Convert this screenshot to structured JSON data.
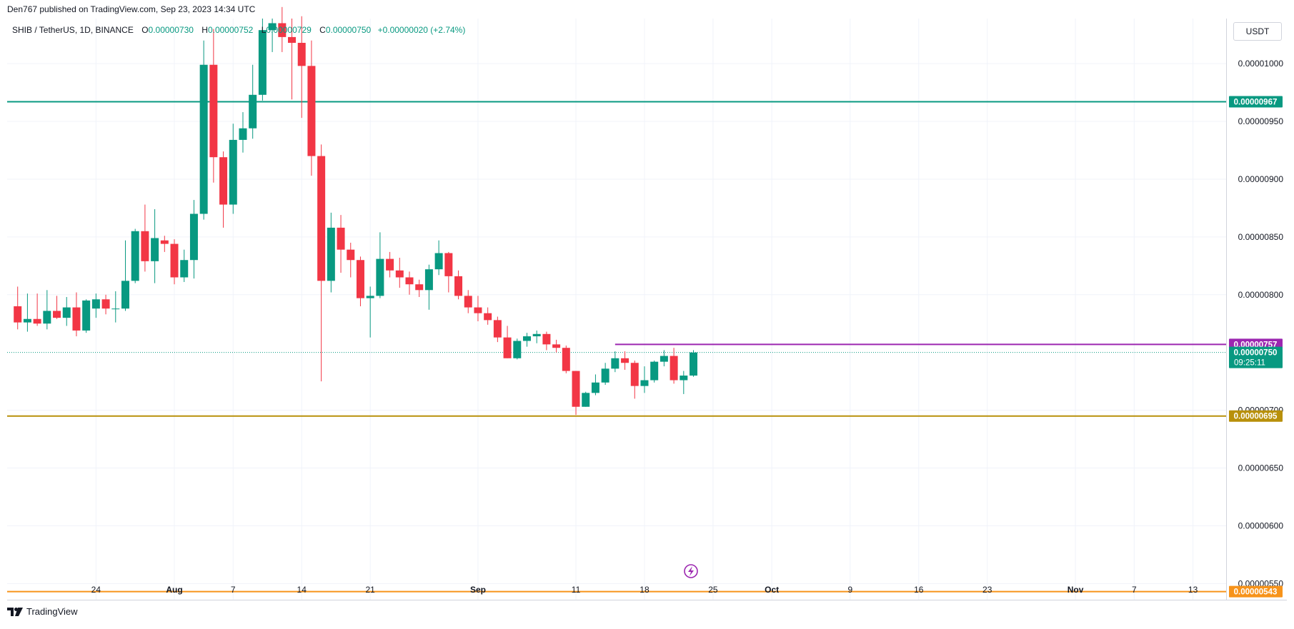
{
  "header": {
    "publisher": "Den767 published on TradingView.com, Sep 23, 2023 14:34 UTC"
  },
  "legend": {
    "symbol": "SHIB / TetherUS, 1D, BINANCE",
    "open_key": "O",
    "open": "0.00000730",
    "high_key": "H",
    "high": "0.00000752",
    "low_key": "L",
    "low": "0.00000729",
    "close_key": "C",
    "close": "0.00000750",
    "change": "+0.00000020 (+2.74%)"
  },
  "currency": "USDT",
  "brand": "TradingView",
  "colors": {
    "up": "#089981",
    "down": "#f23645",
    "grid": "#f0f3fa",
    "teal_line": "#089981",
    "purple_line": "#9c27b0",
    "gold_line": "#b8900a",
    "orange_line": "#f7931a"
  },
  "chart_data": {
    "type": "candlestick",
    "ylim": [
      5.36e-06,
      1.039e-05
    ],
    "y_ticks": [
      "0.00001000",
      "0.00000950",
      "0.00000900",
      "0.00000850",
      "0.00000800",
      "0.00000700",
      "0.00000650",
      "0.00000600",
      "0.00000550"
    ],
    "y_tick_values": [
      1e-05,
      9.5e-06,
      9e-06,
      8.5e-06,
      8e-06,
      7e-06,
      6.5e-06,
      6e-06,
      5.5e-06
    ],
    "x_range": [
      "2023-07-15",
      "2023-11-15"
    ],
    "x_ticks": [
      {
        "label": "24",
        "date": "2023-07-24",
        "bold": false
      },
      {
        "label": "Aug",
        "date": "2023-08-01",
        "bold": true
      },
      {
        "label": "7",
        "date": "2023-08-07",
        "bold": false
      },
      {
        "label": "14",
        "date": "2023-08-14",
        "bold": false
      },
      {
        "label": "21",
        "date": "2023-08-21",
        "bold": false
      },
      {
        "label": "Sep",
        "date": "2023-09-01",
        "bold": true
      },
      {
        "label": "11",
        "date": "2023-09-11",
        "bold": false
      },
      {
        "label": "18",
        "date": "2023-09-18",
        "bold": false
      },
      {
        "label": "25",
        "date": "2023-09-25",
        "bold": false
      },
      {
        "label": "Oct",
        "date": "2023-10-01",
        "bold": true
      },
      {
        "label": "9",
        "date": "2023-10-09",
        "bold": false
      },
      {
        "label": "16",
        "date": "2023-10-16",
        "bold": false
      },
      {
        "label": "23",
        "date": "2023-10-23",
        "bold": false
      },
      {
        "label": "Nov",
        "date": "2023-11-01",
        "bold": true
      },
      {
        "label": "7",
        "date": "2023-11-07",
        "bold": false
      },
      {
        "label": "13",
        "date": "2023-11-13",
        "bold": false
      }
    ],
    "candles": [
      {
        "date": "2023-07-16",
        "o": 7.9,
        "h": 8.07,
        "l": 7.7,
        "c": 7.76
      },
      {
        "date": "2023-07-17",
        "o": 7.76,
        "h": 8.01,
        "l": 7.68,
        "c": 7.79
      },
      {
        "date": "2023-07-18",
        "o": 7.79,
        "h": 8.01,
        "l": 7.73,
        "c": 7.75
      },
      {
        "date": "2023-07-19",
        "o": 7.75,
        "h": 8.04,
        "l": 7.7,
        "c": 7.86
      },
      {
        "date": "2023-07-20",
        "o": 7.86,
        "h": 7.99,
        "l": 7.79,
        "c": 7.8
      },
      {
        "date": "2023-07-21",
        "o": 7.8,
        "h": 7.98,
        "l": 7.73,
        "c": 7.89
      },
      {
        "date": "2023-07-22",
        "o": 7.89,
        "h": 8.02,
        "l": 7.64,
        "c": 7.69
      },
      {
        "date": "2023-07-23",
        "o": 7.69,
        "h": 7.96,
        "l": 7.67,
        "c": 7.95
      },
      {
        "date": "2023-07-24",
        "o": 7.88,
        "h": 8.01,
        "l": 7.8,
        "c": 7.96
      },
      {
        "date": "2023-07-25",
        "o": 7.96,
        "h": 8.0,
        "l": 7.83,
        "c": 7.88
      },
      {
        "date": "2023-07-26",
        "o": 7.88,
        "h": 8.03,
        "l": 7.76,
        "c": 7.88
      },
      {
        "date": "2023-07-27",
        "o": 7.88,
        "h": 8.47,
        "l": 7.86,
        "c": 8.12
      },
      {
        "date": "2023-07-28",
        "o": 8.12,
        "h": 8.57,
        "l": 8.1,
        "c": 8.55
      },
      {
        "date": "2023-07-29",
        "o": 8.55,
        "h": 8.78,
        "l": 8.2,
        "c": 8.29
      },
      {
        "date": "2023-07-30",
        "o": 8.29,
        "h": 8.74,
        "l": 8.1,
        "c": 8.49
      },
      {
        "date": "2023-07-31",
        "o": 8.47,
        "h": 8.51,
        "l": 8.37,
        "c": 8.44
      },
      {
        "date": "2023-08-01",
        "o": 8.44,
        "h": 8.48,
        "l": 8.09,
        "c": 8.15
      },
      {
        "date": "2023-08-02",
        "o": 8.15,
        "h": 8.39,
        "l": 8.11,
        "c": 8.3
      },
      {
        "date": "2023-08-03",
        "o": 8.3,
        "h": 8.82,
        "l": 8.14,
        "c": 8.7
      },
      {
        "date": "2023-08-04",
        "o": 8.7,
        "h": 10.2,
        "l": 8.65,
        "c": 9.99
      },
      {
        "date": "2023-08-05",
        "o": 9.99,
        "h": 10.3,
        "l": 8.97,
        "c": 9.19
      },
      {
        "date": "2023-08-06",
        "o": 9.19,
        "h": 9.24,
        "l": 8.58,
        "c": 8.78
      },
      {
        "date": "2023-08-07",
        "o": 8.78,
        "h": 9.48,
        "l": 8.7,
        "c": 9.34
      },
      {
        "date": "2023-08-08",
        "o": 9.34,
        "h": 9.58,
        "l": 9.23,
        "c": 9.44
      },
      {
        "date": "2023-08-09",
        "o": 9.44,
        "h": 9.99,
        "l": 9.35,
        "c": 9.73
      },
      {
        "date": "2023-08-10",
        "o": 9.73,
        "h": 10.39,
        "l": 9.68,
        "c": 10.29
      },
      {
        "date": "2023-08-11",
        "o": 10.29,
        "h": 10.39,
        "l": 10.1,
        "c": 10.35
      },
      {
        "date": "2023-08-12",
        "o": 10.35,
        "h": 10.49,
        "l": 10.1,
        "c": 10.23
      },
      {
        "date": "2023-08-13",
        "o": 10.23,
        "h": 10.39,
        "l": 9.69,
        "c": 10.18
      },
      {
        "date": "2023-08-14",
        "o": 10.18,
        "h": 10.41,
        "l": 9.53,
        "c": 9.98
      },
      {
        "date": "2023-08-15",
        "o": 9.98,
        "h": 10.2,
        "l": 9.03,
        "c": 9.2
      },
      {
        "date": "2023-08-16",
        "o": 9.2,
        "h": 9.3,
        "l": 7.25,
        "c": 8.12
      },
      {
        "date": "2023-08-17",
        "o": 8.12,
        "h": 8.71,
        "l": 8.02,
        "c": 8.58
      },
      {
        "date": "2023-08-18",
        "o": 8.58,
        "h": 8.69,
        "l": 8.19,
        "c": 8.39
      },
      {
        "date": "2023-08-19",
        "o": 8.39,
        "h": 8.45,
        "l": 8.15,
        "c": 8.3
      },
      {
        "date": "2023-08-20",
        "o": 8.3,
        "h": 8.33,
        "l": 7.9,
        "c": 7.97
      },
      {
        "date": "2023-08-21",
        "o": 7.97,
        "h": 8.07,
        "l": 7.63,
        "c": 7.99
      },
      {
        "date": "2023-08-22",
        "o": 7.99,
        "h": 8.54,
        "l": 7.97,
        "c": 8.31
      },
      {
        "date": "2023-08-23",
        "o": 8.31,
        "h": 8.37,
        "l": 8.15,
        "c": 8.21
      },
      {
        "date": "2023-08-24",
        "o": 8.21,
        "h": 8.32,
        "l": 8.06,
        "c": 8.15
      },
      {
        "date": "2023-08-25",
        "o": 8.15,
        "h": 8.2,
        "l": 8.0,
        "c": 8.09
      },
      {
        "date": "2023-08-26",
        "o": 8.09,
        "h": 8.13,
        "l": 7.98,
        "c": 8.04
      },
      {
        "date": "2023-08-27",
        "o": 8.04,
        "h": 8.26,
        "l": 7.87,
        "c": 8.22
      },
      {
        "date": "2023-08-28",
        "o": 8.22,
        "h": 8.47,
        "l": 8.17,
        "c": 8.36
      },
      {
        "date": "2023-08-29",
        "o": 8.36,
        "h": 8.37,
        "l": 8.02,
        "c": 8.16
      },
      {
        "date": "2023-08-30",
        "o": 8.16,
        "h": 8.21,
        "l": 7.96,
        "c": 7.99
      },
      {
        "date": "2023-08-31",
        "o": 7.99,
        "h": 8.04,
        "l": 7.84,
        "c": 7.89
      },
      {
        "date": "2023-09-01",
        "o": 7.89,
        "h": 7.99,
        "l": 7.77,
        "c": 7.84
      },
      {
        "date": "2023-09-02",
        "o": 7.84,
        "h": 7.89,
        "l": 7.74,
        "c": 7.78
      },
      {
        "date": "2023-09-03",
        "o": 7.78,
        "h": 7.81,
        "l": 7.59,
        "c": 7.63
      },
      {
        "date": "2023-09-04",
        "o": 7.63,
        "h": 7.73,
        "l": 7.45,
        "c": 7.45
      },
      {
        "date": "2023-09-05",
        "o": 7.45,
        "h": 7.62,
        "l": 7.44,
        "c": 7.6
      },
      {
        "date": "2023-09-06",
        "o": 7.6,
        "h": 7.67,
        "l": 7.55,
        "c": 7.64
      },
      {
        "date": "2023-09-07",
        "o": 7.64,
        "h": 7.69,
        "l": 7.58,
        "c": 7.66
      },
      {
        "date": "2023-09-08",
        "o": 7.66,
        "h": 7.68,
        "l": 7.52,
        "c": 7.57
      },
      {
        "date": "2023-09-09",
        "o": 7.57,
        "h": 7.61,
        "l": 7.5,
        "c": 7.54
      },
      {
        "date": "2023-09-10",
        "o": 7.54,
        "h": 7.56,
        "l": 7.32,
        "c": 7.34
      },
      {
        "date": "2023-09-11",
        "o": 7.34,
        "h": 7.34,
        "l": 6.96,
        "c": 7.03
      },
      {
        "date": "2023-09-12",
        "o": 7.03,
        "h": 7.16,
        "l": 7.03,
        "c": 7.15
      },
      {
        "date": "2023-09-13",
        "o": 7.15,
        "h": 7.31,
        "l": 7.13,
        "c": 7.24
      },
      {
        "date": "2023-09-14",
        "o": 7.24,
        "h": 7.41,
        "l": 7.22,
        "c": 7.36
      },
      {
        "date": "2023-09-15",
        "o": 7.36,
        "h": 7.51,
        "l": 7.33,
        "c": 7.45
      },
      {
        "date": "2023-09-16",
        "o": 7.45,
        "h": 7.51,
        "l": 7.35,
        "c": 7.41
      },
      {
        "date": "2023-09-17",
        "o": 7.41,
        "h": 7.43,
        "l": 7.1,
        "c": 7.21
      },
      {
        "date": "2023-09-18",
        "o": 7.21,
        "h": 7.38,
        "l": 7.15,
        "c": 7.26
      },
      {
        "date": "2023-09-19",
        "o": 7.26,
        "h": 7.43,
        "l": 7.24,
        "c": 7.42
      },
      {
        "date": "2023-09-20",
        "o": 7.42,
        "h": 7.52,
        "l": 7.38,
        "c": 7.47
      },
      {
        "date": "2023-09-21",
        "o": 7.47,
        "h": 7.54,
        "l": 7.23,
        "c": 7.26
      },
      {
        "date": "2023-09-22",
        "o": 7.26,
        "h": 7.34,
        "l": 7.14,
        "c": 7.3
      },
      {
        "date": "2023-09-23",
        "o": 7.3,
        "h": 7.52,
        "l": 7.29,
        "c": 7.5
      }
    ],
    "price_multiplier": 1e-06,
    "hlines": [
      {
        "name": "teal",
        "value": 9.67e-06,
        "label": "0.00000967",
        "color": "#089981",
        "from": "2023-07-15"
      },
      {
        "name": "purple",
        "value": 7.57e-06,
        "label": "0.00000757",
        "color": "#9c27b0",
        "from": "2023-09-15"
      },
      {
        "name": "gold",
        "value": 6.95e-06,
        "label": "0.00000695",
        "color": "#b8900a",
        "from": "2023-07-15"
      },
      {
        "name": "orange",
        "value": 5.43e-06,
        "label": "0.00000543",
        "color": "#f7931a",
        "from": "2023-07-15"
      }
    ],
    "last_price": {
      "value": 7.5e-06,
      "label": "0.00000750",
      "countdown": "09:25:11",
      "color": "#089981"
    }
  }
}
